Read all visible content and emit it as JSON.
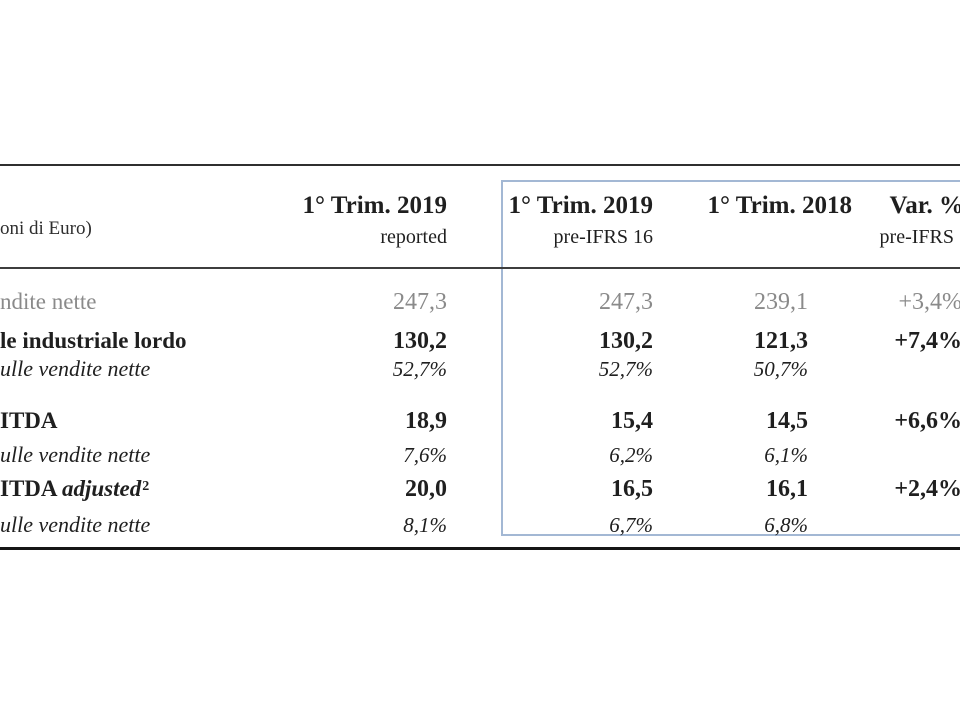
{
  "colors": {
    "accent_blue": "#a3b8d4",
    "muted_gray": "#8a8a8a",
    "text_black": "#1f1f1f"
  },
  "table": {
    "unit_label": "oni di Euro)",
    "header": {
      "col_reported": {
        "line1": "1° Trim. 2019",
        "line2": "reported"
      },
      "col_2019_preifrs": {
        "line1": "1° Trim. 2019",
        "line2": "pre-IFRS 16"
      },
      "col_2018": {
        "line1": "1° Trim. 2018",
        "line2": ""
      },
      "col_var": {
        "line1": "Var. %",
        "line2": "pre-IFRS"
      }
    },
    "rows": [
      {
        "label": "ndite nette",
        "c1": "247,3",
        "c2": "247,3",
        "c3": "239,1",
        "c4": "+3,4%"
      },
      {
        "label": "le industriale lordo",
        "c1": "130,2",
        "c2": "130,2",
        "c3": "121,3",
        "c4": "+7,4%"
      },
      {
        "label": "ulle vendite nette",
        "c1": "52,7%",
        "c2": "52,7%",
        "c3": "50,7%",
        "c4": ""
      },
      {
        "label": "ITDA",
        "c1": "18,9",
        "c2": "15,4",
        "c3": "14,5",
        "c4": "+6,6%"
      },
      {
        "label": "ulle vendite nette",
        "c1": "7,6%",
        "c2": "6,2%",
        "c3": "6,1%",
        "c4": ""
      },
      {
        "label_main": "ITDA ",
        "label_adj": "adjusted",
        "label_sup": "2",
        "c1": "20,0",
        "c2": "16,5",
        "c3": "16,1",
        "c4": "+2,4%"
      },
      {
        "label": "ulle vendite nette",
        "c1": "8,1%",
        "c2": "6,7%",
        "c3": "6,8%",
        "c4": ""
      }
    ]
  }
}
